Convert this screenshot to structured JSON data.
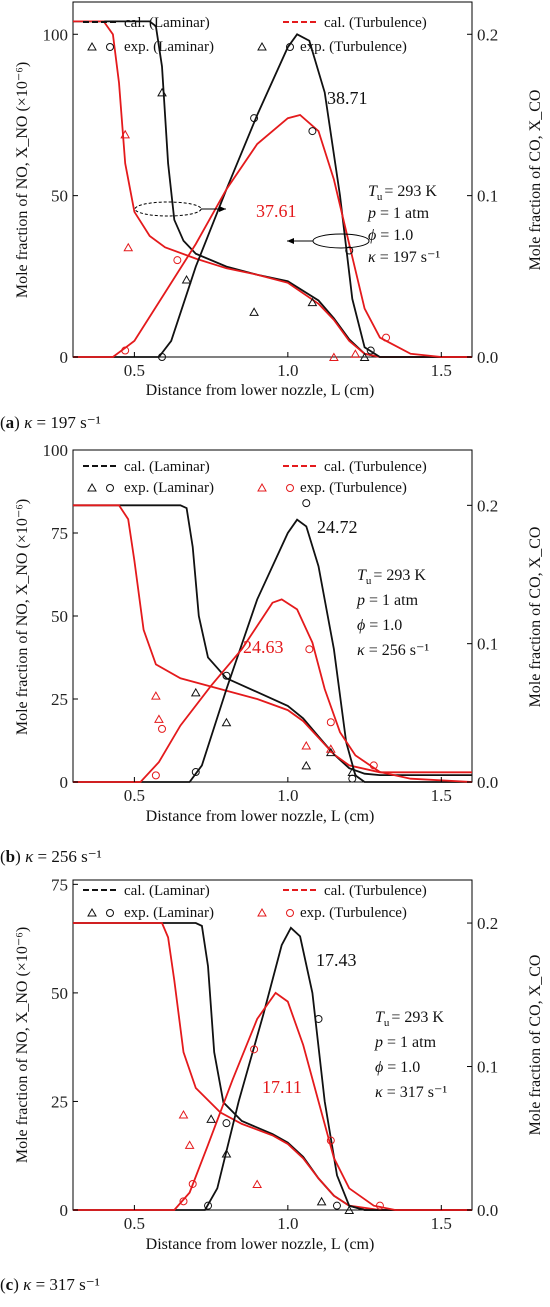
{
  "colors": {
    "laminar": "#111111",
    "turbulence": "#e41a1c"
  },
  "shared": {
    "xlabel": "Distance from lower nozzle, L (cm)",
    "ylabel_left": "Mole fraction of NO, X_NO (×10⁻⁶)",
    "ylabel_right": "Mole fraction of CO, X_CO",
    "legend": {
      "cal_laminar": "cal. (Laminar)",
      "cal_turbulence": "cal. (Turbulence)",
      "exp_laminar": "exp. (Laminar)",
      "exp_turbulence": "exp. (Turbulence)"
    },
    "conditions": {
      "tu": "= 293 K",
      "p": "= 1 atm",
      "phi": "= 1.0"
    },
    "xticks": [
      "0.5",
      "1.0",
      "1.5"
    ],
    "right_ticks": [
      "0.0",
      "0.1",
      "0.2"
    ]
  },
  "chart_data": [
    {
      "panel": "a",
      "type": "line",
      "caption_kappa": "= 197 s⁻¹",
      "kappa_text": "= 197 s⁻¹",
      "xlim": [
        0.3,
        1.6
      ],
      "ylim_left": [
        0,
        110
      ],
      "ylim_right": [
        0,
        0.22
      ],
      "left_ticks": [
        "0",
        "50",
        "100"
      ],
      "peak_laminar": "38.71",
      "peak_turbulence": "37.61",
      "series": [
        {
          "key": "co_lam",
          "axis": "right",
          "points": [
            [
              0.3,
              0.208
            ],
            [
              0.55,
              0.208
            ],
            [
              0.57,
              0.205
            ],
            [
              0.59,
              0.18
            ],
            [
              0.61,
              0.12
            ],
            [
              0.63,
              0.085
            ],
            [
              0.66,
              0.072
            ],
            [
              0.7,
              0.064
            ],
            [
              0.8,
              0.056
            ],
            [
              0.9,
              0.051
            ],
            [
              1.0,
              0.047
            ],
            [
              1.1,
              0.035
            ],
            [
              1.15,
              0.024
            ],
            [
              1.2,
              0.011
            ],
            [
              1.25,
              0.002
            ],
            [
              1.3,
              0.0
            ],
            [
              1.6,
              0.0
            ]
          ]
        },
        {
          "key": "co_turb",
          "axis": "right",
          "points": [
            [
              0.3,
              0.208
            ],
            [
              0.4,
              0.208
            ],
            [
              0.43,
              0.2
            ],
            [
              0.45,
              0.17
            ],
            [
              0.47,
              0.12
            ],
            [
              0.5,
              0.09
            ],
            [
              0.55,
              0.075
            ],
            [
              0.6,
              0.068
            ],
            [
              0.7,
              0.061
            ],
            [
              0.8,
              0.055
            ],
            [
              0.9,
              0.051
            ],
            [
              1.0,
              0.046
            ],
            [
              1.1,
              0.033
            ],
            [
              1.15,
              0.023
            ],
            [
              1.2,
              0.01
            ],
            [
              1.25,
              0.002
            ],
            [
              1.3,
              0.0
            ],
            [
              1.6,
              0.0
            ]
          ]
        },
        {
          "key": "no_lam",
          "axis": "left",
          "points": [
            [
              0.3,
              0
            ],
            [
              0.58,
              0
            ],
            [
              0.62,
              5
            ],
            [
              0.7,
              28
            ],
            [
              0.8,
              52
            ],
            [
              0.9,
              75
            ],
            [
              1.0,
              96
            ],
            [
              1.03,
              100
            ],
            [
              1.07,
              98
            ],
            [
              1.12,
              82
            ],
            [
              1.17,
              50
            ],
            [
              1.21,
              18
            ],
            [
              1.25,
              3
            ],
            [
              1.3,
              0
            ],
            [
              1.6,
              0
            ]
          ]
        },
        {
          "key": "no_turb",
          "axis": "left",
          "points": [
            [
              0.3,
              0
            ],
            [
              0.43,
              0
            ],
            [
              0.5,
              5
            ],
            [
              0.6,
              20
            ],
            [
              0.7,
              35
            ],
            [
              0.8,
              52
            ],
            [
              0.9,
              66
            ],
            [
              1.0,
              74
            ],
            [
              1.04,
              75
            ],
            [
              1.1,
              70
            ],
            [
              1.15,
              55
            ],
            [
              1.2,
              35
            ],
            [
              1.25,
              15
            ],
            [
              1.3,
              6
            ],
            [
              1.4,
              1
            ],
            [
              1.5,
              0
            ],
            [
              1.6,
              0
            ]
          ]
        }
      ],
      "exp_laminar_triangle": [
        [
          0.59,
          82
        ],
        [
          0.67,
          24
        ],
        [
          0.89,
          14
        ],
        [
          1.08,
          17
        ],
        [
          1.25,
          0
        ]
      ],
      "exp_laminar_circle": [
        [
          0.59,
          0
        ],
        [
          0.89,
          74
        ],
        [
          1.08,
          70
        ],
        [
          1.2,
          33
        ],
        [
          1.27,
          2
        ]
      ],
      "exp_turbulence_triangle": [
        [
          0.47,
          69
        ],
        [
          0.48,
          34
        ],
        [
          1.15,
          0
        ],
        [
          1.22,
          1
        ]
      ],
      "exp_turbulence_circle": [
        [
          0.47,
          2
        ],
        [
          0.64,
          30
        ],
        [
          1.32,
          6
        ]
      ]
    },
    {
      "panel": "b",
      "type": "line",
      "caption_kappa": "= 256 s⁻¹",
      "kappa_text": "= 256 s⁻¹",
      "xlim": [
        0.3,
        1.6
      ],
      "ylim_left": [
        0,
        100
      ],
      "ylim_right": [
        0,
        0.24
      ],
      "left_ticks": [
        "0",
        "25",
        "50",
        "75",
        "100"
      ],
      "peak_laminar": "24.72",
      "peak_turbulence": "24.63",
      "series": [
        {
          "key": "co_lam",
          "axis": "right",
          "points": [
            [
              0.3,
              0.2
            ],
            [
              0.65,
              0.2
            ],
            [
              0.67,
              0.198
            ],
            [
              0.69,
              0.17
            ],
            [
              0.71,
              0.12
            ],
            [
              0.74,
              0.09
            ],
            [
              0.8,
              0.075
            ],
            [
              0.9,
              0.065
            ],
            [
              1.0,
              0.055
            ],
            [
              1.05,
              0.046
            ],
            [
              1.1,
              0.033
            ],
            [
              1.15,
              0.02
            ],
            [
              1.2,
              0.01
            ],
            [
              1.25,
              0.006
            ],
            [
              1.3,
              0.005
            ],
            [
              1.6,
              0.005
            ]
          ]
        },
        {
          "key": "co_turb",
          "axis": "right",
          "points": [
            [
              0.3,
              0.2
            ],
            [
              0.45,
              0.2
            ],
            [
              0.48,
              0.19
            ],
            [
              0.5,
              0.16
            ],
            [
              0.53,
              0.11
            ],
            [
              0.57,
              0.085
            ],
            [
              0.65,
              0.075
            ],
            [
              0.8,
              0.066
            ],
            [
              0.9,
              0.06
            ],
            [
              1.0,
              0.052
            ],
            [
              1.05,
              0.044
            ],
            [
              1.1,
              0.032
            ],
            [
              1.15,
              0.02
            ],
            [
              1.2,
              0.012
            ],
            [
              1.3,
              0.007
            ],
            [
              1.6,
              0.007
            ]
          ]
        },
        {
          "key": "no_lam",
          "axis": "left",
          "points": [
            [
              0.3,
              0
            ],
            [
              0.68,
              0
            ],
            [
              0.72,
              5
            ],
            [
              0.8,
              28
            ],
            [
              0.9,
              55
            ],
            [
              1.0,
              75
            ],
            [
              1.03,
              79
            ],
            [
              1.06,
              77
            ],
            [
              1.1,
              65
            ],
            [
              1.15,
              40
            ],
            [
              1.19,
              12
            ],
            [
              1.22,
              2
            ],
            [
              1.25,
              0
            ],
            [
              1.6,
              0
            ]
          ]
        },
        {
          "key": "no_turb",
          "axis": "left",
          "points": [
            [
              0.3,
              0
            ],
            [
              0.52,
              0
            ],
            [
              0.58,
              6
            ],
            [
              0.65,
              17
            ],
            [
              0.75,
              29
            ],
            [
              0.85,
              40
            ],
            [
              0.95,
              54
            ],
            [
              0.98,
              55
            ],
            [
              1.03,
              52
            ],
            [
              1.08,
              42
            ],
            [
              1.12,
              28
            ],
            [
              1.17,
              15
            ],
            [
              1.22,
              8
            ],
            [
              1.3,
              3
            ],
            [
              1.4,
              1
            ],
            [
              1.6,
              0
            ]
          ]
        }
      ],
      "exp_laminar_triangle": [
        [
          0.7,
          27
        ],
        [
          0.8,
          18
        ],
        [
          1.06,
          5
        ],
        [
          1.14,
          9
        ],
        [
          1.21,
          3
        ]
      ],
      "exp_laminar_circle": [
        [
          0.7,
          3
        ],
        [
          0.8,
          32
        ],
        [
          1.06,
          84
        ],
        [
          1.21,
          1
        ]
      ],
      "exp_turbulence_triangle": [
        [
          0.57,
          26
        ],
        [
          0.58,
          19
        ],
        [
          1.06,
          11
        ],
        [
          1.14,
          10
        ]
      ],
      "exp_turbulence_circle": [
        [
          0.57,
          2
        ],
        [
          0.59,
          16
        ],
        [
          1.07,
          40
        ],
        [
          1.14,
          18
        ],
        [
          1.28,
          5
        ]
      ]
    },
    {
      "panel": "c",
      "type": "line",
      "caption_kappa": "= 317 s⁻¹",
      "kappa_text": "= 317 s⁻¹",
      "xlim": [
        0.3,
        1.6
      ],
      "ylim_left": [
        0,
        76
      ],
      "ylim_right": [
        0,
        0.23
      ],
      "left_ticks": [
        "0",
        "25",
        "50",
        "75"
      ],
      "peak_laminar": "17.43",
      "peak_turbulence": "17.11",
      "series": [
        {
          "key": "co_lam",
          "axis": "right",
          "points": [
            [
              0.3,
              0.2
            ],
            [
              0.7,
              0.2
            ],
            [
              0.72,
              0.198
            ],
            [
              0.74,
              0.17
            ],
            [
              0.76,
              0.11
            ],
            [
              0.79,
              0.075
            ],
            [
              0.85,
              0.062
            ],
            [
              0.95,
              0.053
            ],
            [
              1.0,
              0.047
            ],
            [
              1.05,
              0.037
            ],
            [
              1.1,
              0.022
            ],
            [
              1.15,
              0.01
            ],
            [
              1.2,
              0.003
            ],
            [
              1.25,
              0.0
            ],
            [
              1.6,
              0.0
            ]
          ]
        },
        {
          "key": "co_turb",
          "axis": "right",
          "points": [
            [
              0.3,
              0.2
            ],
            [
              0.59,
              0.2
            ],
            [
              0.61,
              0.19
            ],
            [
              0.63,
              0.16
            ],
            [
              0.66,
              0.11
            ],
            [
              0.7,
              0.085
            ],
            [
              0.78,
              0.068
            ],
            [
              0.85,
              0.06
            ],
            [
              0.95,
              0.052
            ],
            [
              1.0,
              0.046
            ],
            [
              1.05,
              0.036
            ],
            [
              1.1,
              0.022
            ],
            [
              1.15,
              0.01
            ],
            [
              1.2,
              0.003
            ],
            [
              1.3,
              0.0
            ],
            [
              1.6,
              0.0
            ]
          ]
        },
        {
          "key": "no_lam",
          "axis": "left",
          "points": [
            [
              0.3,
              0
            ],
            [
              0.73,
              0
            ],
            [
              0.77,
              5
            ],
            [
              0.84,
              25
            ],
            [
              0.92,
              45
            ],
            [
              0.98,
              61
            ],
            [
              1.01,
              65
            ],
            [
              1.04,
              63
            ],
            [
              1.08,
              50
            ],
            [
              1.12,
              25
            ],
            [
              1.16,
              8
            ],
            [
              1.2,
              1
            ],
            [
              1.25,
              0
            ],
            [
              1.6,
              0
            ]
          ]
        },
        {
          "key": "no_turb",
          "axis": "left",
          "points": [
            [
              0.3,
              0
            ],
            [
              0.63,
              0
            ],
            [
              0.68,
              4
            ],
            [
              0.74,
              15
            ],
            [
              0.82,
              30
            ],
            [
              0.9,
              44
            ],
            [
              0.96,
              50
            ],
            [
              1.0,
              48
            ],
            [
              1.05,
              38
            ],
            [
              1.1,
              25
            ],
            [
              1.15,
              12
            ],
            [
              1.2,
              5
            ],
            [
              1.28,
              1
            ],
            [
              1.35,
              0
            ],
            [
              1.6,
              0
            ]
          ]
        }
      ],
      "exp_laminar_triangle": [
        [
          0.75,
          21
        ],
        [
          0.8,
          13
        ],
        [
          1.11,
          2
        ],
        [
          1.2,
          0
        ]
      ],
      "exp_laminar_circle": [
        [
          0.74,
          1
        ],
        [
          0.8,
          20
        ],
        [
          1.1,
          44
        ],
        [
          1.16,
          1
        ]
      ],
      "exp_turbulence_triangle": [
        [
          0.66,
          22
        ],
        [
          0.68,
          15
        ],
        [
          0.9,
          6
        ]
      ],
      "exp_turbulence_circle": [
        [
          0.66,
          2
        ],
        [
          0.69,
          6
        ],
        [
          0.89,
          37
        ],
        [
          1.14,
          16
        ],
        [
          1.3,
          1
        ]
      ]
    }
  ]
}
